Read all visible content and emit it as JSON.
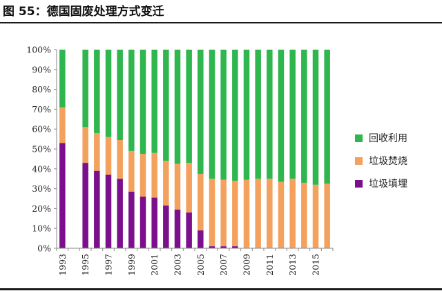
{
  "title": "图 55：德国固废处理方式变迁",
  "chart_data": {
    "type": "bar",
    "stacked": true,
    "percent": true,
    "x": [
      1993,
      1994,
      1995,
      1996,
      1997,
      1998,
      1999,
      2000,
      2001,
      2002,
      2003,
      2004,
      2005,
      2006,
      2007,
      2008,
      2009,
      2010,
      2011,
      2012,
      2013,
      2014,
      2015,
      2016
    ],
    "x_ticks": [
      "1993",
      "1995",
      "1997",
      "1999",
      "2001",
      "2003",
      "2005",
      "2007",
      "2009",
      "2011",
      "2013",
      "2015"
    ],
    "y_ticks": [
      "0%",
      "10%",
      "20%",
      "30%",
      "40%",
      "50%",
      "60%",
      "70%",
      "80%",
      "90%",
      "100%"
    ],
    "ylim": [
      0,
      100
    ],
    "series": [
      {
        "name": "垃圾填埋",
        "color": "#7b0f8c",
        "values": [
          53,
          null,
          43,
          39,
          37,
          35,
          28.5,
          26,
          25.5,
          21.5,
          19.5,
          18,
          9,
          1,
          1,
          1,
          0,
          0,
          0,
          0,
          0,
          0,
          0,
          0
        ]
      },
      {
        "name": "垃圾焚烧",
        "color": "#f4a15d",
        "values": [
          18,
          null,
          18,
          19,
          19,
          19.5,
          20.5,
          21.5,
          22.5,
          22.5,
          23,
          25,
          28.5,
          34,
          33.5,
          33,
          34.5,
          35,
          35,
          33.5,
          35,
          33,
          32,
          32.5
        ]
      },
      {
        "name": "回收利用",
        "color": "#2fb64e",
        "values": [
          29,
          null,
          39,
          42,
          44,
          45.5,
          51,
          52.5,
          52,
          56,
          57.5,
          57,
          62.5,
          65,
          65.5,
          66,
          65.5,
          65,
          65,
          66.5,
          65,
          67,
          68,
          67.5
        ]
      }
    ],
    "legend_order": [
      "回收利用",
      "垃圾焚烧",
      "垃圾填埋"
    ],
    "legend_position": "right"
  }
}
